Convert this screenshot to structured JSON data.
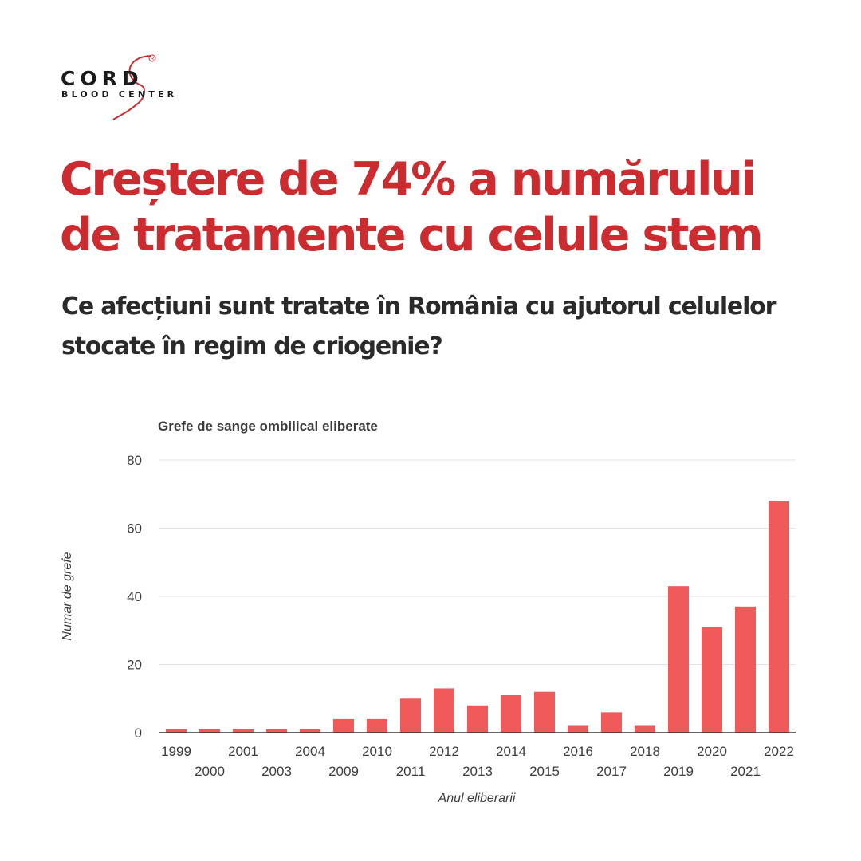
{
  "brand": {
    "name": "CORD",
    "tagline": "BLOOD CENTER",
    "registered": "®"
  },
  "headline": {
    "text": "Creștere de 74% a numărului de tratamente cu celule stem"
  },
  "subheadline": {
    "text": "Ce afecțiuni sunt tratate în România cu ajutorul celulelor stocate în regim de criogenie?"
  },
  "colors": {
    "accent": "#cc2b2f",
    "bar": "#f05a5b",
    "text": "#3c3c3c"
  },
  "chart_data": {
    "type": "bar",
    "title": "Grefe de sange ombilical eliberate",
    "xlabel": "Anul eliberarii",
    "ylabel": "Numar de grefe",
    "ylim": [
      0,
      80
    ],
    "yticks": [
      0,
      20,
      40,
      60,
      80
    ],
    "grid": true,
    "legend": "none",
    "categories": [
      "1999",
      "2000",
      "2001",
      "2003",
      "2004",
      "2009",
      "2010",
      "2011",
      "2012",
      "2013",
      "2014",
      "2015",
      "2016",
      "2017",
      "2018",
      "2019",
      "2020",
      "2021",
      "2022"
    ],
    "values": [
      1,
      1,
      1,
      1,
      1,
      4,
      4,
      10,
      13,
      8,
      11,
      12,
      2,
      6,
      2,
      43,
      31,
      37,
      68
    ]
  }
}
